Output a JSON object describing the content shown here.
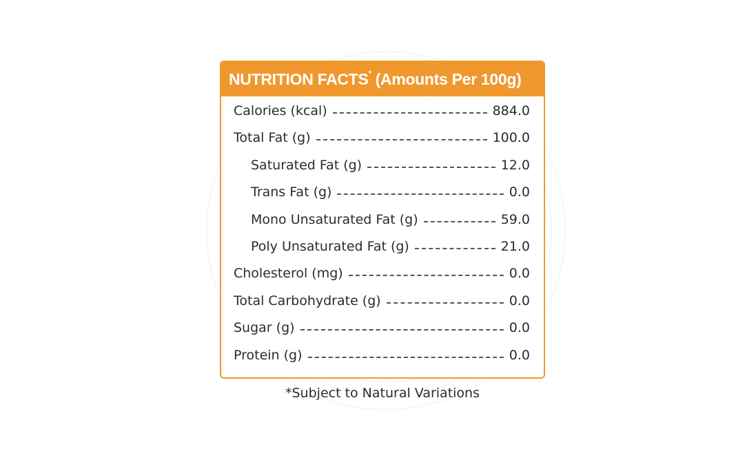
{
  "panel": {
    "title": "NUTRITION FACTS",
    "title_marker": "*",
    "title_suffix": " (Amounts Per 100g)",
    "accent_color": "#f0982d"
  },
  "nutrients": [
    {
      "label": "Calories (kcal)",
      "value": "884.0",
      "indent": false
    },
    {
      "label": "Total Fat (g)",
      "value": "100.0",
      "indent": false
    },
    {
      "label": "Saturated Fat (g)",
      "value": "12.0",
      "indent": true
    },
    {
      "label": "Trans Fat (g)",
      "value": "0.0",
      "indent": true
    },
    {
      "label": "Mono Unsaturated Fat (g)",
      "value": "59.0",
      "indent": true
    },
    {
      "label": "Poly Unsaturated Fat (g)",
      "value": "21.0",
      "indent": true
    },
    {
      "label": "Cholesterol (mg)",
      "value": "0.0",
      "indent": false
    },
    {
      "label": "Total Carbohydrate (g)",
      "value": "0.0",
      "indent": false
    },
    {
      "label": "Sugar (g)",
      "value": "0.0",
      "indent": false
    },
    {
      "label": "Protein (g)",
      "value": "0.0",
      "indent": false
    }
  ],
  "footnote": "*Subject to Natural Variations"
}
